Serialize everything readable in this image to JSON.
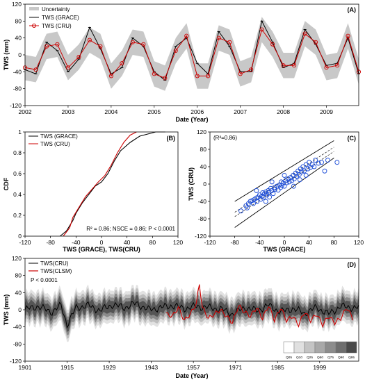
{
  "chart_data": [
    {
      "panel": "(A)",
      "type": "line",
      "xlabel": "Date (Year)",
      "ylabel": "TWS (mm)",
      "xlim": [
        2002.0,
        2009.75
      ],
      "ylim": [
        -120,
        120
      ],
      "xticks": [
        "2002",
        "2003",
        "2004",
        "2005",
        "2006",
        "2007",
        "2008",
        "2009"
      ],
      "yticks": [
        "-120",
        "-80",
        "-40",
        "0",
        "40",
        "80",
        "120"
      ],
      "legend": [
        "Uncertainty",
        "TWS (GRACE)",
        "TWS (CRU)"
      ],
      "legend_position": "top-left",
      "colors": {
        "uncertainty": "#c8c8c8",
        "grace": "#000000",
        "cru": "#cc0000"
      },
      "x": [
        2002.0,
        2002.25,
        2002.5,
        2002.75,
        2003.0,
        2003.25,
        2003.5,
        2003.75,
        2004.0,
        2004.25,
        2004.5,
        2004.75,
        2005.0,
        2005.25,
        2005.5,
        2005.75,
        2006.0,
        2006.25,
        2006.5,
        2006.75,
        2007.0,
        2007.25,
        2007.5,
        2007.75,
        2008.0,
        2008.25,
        2008.5,
        2008.75,
        2009.0,
        2009.25,
        2009.5,
        2009.75
      ],
      "series": [
        {
          "name": "TWS (GRACE)",
          "values": [
            -35,
            -45,
            30,
            10,
            -40,
            -10,
            65,
            15,
            -45,
            -30,
            40,
            20,
            -40,
            -60,
            20,
            40,
            -20,
            -45,
            55,
            20,
            -40,
            -40,
            80,
            30,
            -30,
            -20,
            60,
            25,
            -25,
            -20,
            40,
            -45
          ]
        },
        {
          "name": "TWS (CRU)",
          "values": [
            -30,
            -35,
            20,
            25,
            -30,
            -5,
            35,
            20,
            -50,
            -20,
            30,
            25,
            -45,
            -55,
            10,
            45,
            -50,
            -50,
            40,
            30,
            -45,
            -35,
            60,
            25,
            -25,
            -25,
            50,
            30,
            -30,
            -25,
            45,
            -40
          ]
        }
      ],
      "uncertainty_halfwidth": 30
    },
    {
      "panel": "(B)",
      "type": "line",
      "xlabel": "TWS (GRACE),  TWS(CRU)",
      "ylabel": "CDF",
      "xlim": [
        -120,
        120
      ],
      "ylim": [
        0,
        1
      ],
      "xticks": [
        "-120",
        "-80",
        "-40",
        "0",
        "40",
        "80",
        "120"
      ],
      "yticks": [
        "0",
        "0.2",
        "0.4",
        "0.6",
        "0.8",
        "1"
      ],
      "legend": [
        "TWS (GRACE)",
        "TWS (CRU)"
      ],
      "legend_position": "top-left",
      "annotation": "R² = 0.86; NSCE = 0.86; P < 0.0001",
      "series": [
        {
          "name": "TWS (GRACE)",
          "x": [
            -65,
            -55,
            -45,
            -40,
            -30,
            -20,
            -10,
            0,
            10,
            20,
            30,
            45,
            60,
            85,
            100
          ],
          "y": [
            0,
            0.05,
            0.15,
            0.22,
            0.32,
            0.4,
            0.48,
            0.52,
            0.6,
            0.72,
            0.82,
            0.9,
            0.96,
            1.0,
            1.0
          ]
        },
        {
          "name": "TWS (CRU)",
          "x": [
            -60,
            -50,
            -45,
            -35,
            -25,
            -15,
            -5,
            5,
            15,
            25,
            35,
            45,
            55
          ],
          "y": [
            0,
            0.08,
            0.18,
            0.28,
            0.38,
            0.45,
            0.52,
            0.58,
            0.68,
            0.8,
            0.9,
            0.97,
            1.0
          ]
        }
      ]
    },
    {
      "panel": "(C)",
      "type": "scatter",
      "xlabel": "TWS (GRACE)",
      "ylabel": "TWS (CRU)",
      "xlim": [
        -120,
        120
      ],
      "ylim": [
        -120,
        120
      ],
      "xticks": [
        "-120",
        "-80",
        "-40",
        "0",
        "40",
        "80",
        "120"
      ],
      "yticks": [
        "-120",
        "-80",
        "-40",
        "0",
        "40",
        "80",
        "120"
      ],
      "annotation": "(R²=0.86)",
      "colors": {
        "points": "#1f4fd8"
      },
      "points": [
        [
          -70,
          -62
        ],
        [
          -62,
          -50
        ],
        [
          -58,
          -45
        ],
        [
          -55,
          -40
        ],
        [
          -52,
          -38
        ],
        [
          -50,
          -45
        ],
        [
          -48,
          -35
        ],
        [
          -45,
          -32
        ],
        [
          -44,
          -40
        ],
        [
          -42,
          -30
        ],
        [
          -40,
          -25
        ],
        [
          -38,
          -35
        ],
        [
          -36,
          -28
        ],
        [
          -35,
          -20
        ],
        [
          -33,
          -30
        ],
        [
          -32,
          -22
        ],
        [
          -30,
          -18
        ],
        [
          -28,
          -25
        ],
        [
          -26,
          -15
        ],
        [
          -25,
          -20
        ],
        [
          -24,
          -30
        ],
        [
          -22,
          -10
        ],
        [
          -20,
          -15
        ],
        [
          -18,
          -22
        ],
        [
          -16,
          -8
        ],
        [
          -15,
          -12
        ],
        [
          -12,
          -5
        ],
        [
          -10,
          -14
        ],
        [
          -8,
          -2
        ],
        [
          -6,
          -8
        ],
        [
          -5,
          5
        ],
        [
          -4,
          -3
        ],
        [
          -2,
          2
        ],
        [
          0,
          -5
        ],
        [
          2,
          8
        ],
        [
          4,
          3
        ],
        [
          6,
          12
        ],
        [
          8,
          5
        ],
        [
          10,
          15
        ],
        [
          12,
          8
        ],
        [
          14,
          20
        ],
        [
          16,
          12
        ],
        [
          18,
          25
        ],
        [
          20,
          18
        ],
        [
          22,
          30
        ],
        [
          24,
          22
        ],
        [
          26,
          35
        ],
        [
          28,
          28
        ],
        [
          30,
          40
        ],
        [
          32,
          30
        ],
        [
          35,
          45
        ],
        [
          38,
          35
        ],
        [
          40,
          50
        ],
        [
          42,
          38
        ],
        [
          45,
          45
        ],
        [
          48,
          40
        ],
        [
          50,
          55
        ],
        [
          55,
          48
        ],
        [
          60,
          50
        ],
        [
          65,
          30
        ],
        [
          70,
          55
        ],
        [
          85,
          50
        ],
        [
          -60,
          -55
        ],
        [
          -30,
          -40
        ],
        [
          -20,
          5
        ],
        [
          0,
          20
        ],
        [
          15,
          -5
        ],
        [
          25,
          10
        ],
        [
          35,
          20
        ],
        [
          -45,
          -15
        ]
      ],
      "fit_lines": [
        "1:1",
        "±95% band",
        "±prediction"
      ]
    },
    {
      "panel": "(D)",
      "type": "line",
      "xlabel": "Date (Year)",
      "ylabel": "TWS (mm)",
      "xlim": [
        1901,
        2012
      ],
      "ylim": [
        -120,
        120
      ],
      "xticks": [
        "1901",
        "1915",
        "1929",
        "1943",
        "1957",
        "1971",
        "1985",
        "1999"
      ],
      "yticks": [
        "-120",
        "-80",
        "-40",
        "0",
        "40",
        "80",
        "120"
      ],
      "legend": [
        "TWS(CRU)",
        "TWS(CLSM)"
      ],
      "legend_position": "top-left",
      "annotation": "P < 0.0001",
      "quantile_legend": [
        "Q05",
        "Q10",
        "Q25",
        "Q50",
        "Q75",
        "Q90",
        "Q95"
      ],
      "quantile_colors": [
        "#ffffff",
        "#e0e0e0",
        "#c4c4c4",
        "#a8a8a8",
        "#8c8c8c",
        "#6e6e6e",
        "#4a4a4a"
      ],
      "colors": {
        "cru": "#000000",
        "clsm": "#cc0000"
      },
      "series": [
        {
          "name": "TWS(CRU)",
          "x": [
            1901,
            1905,
            1910,
            1913,
            1915,
            1918,
            1922,
            1926,
            1930,
            1934,
            1938,
            1942,
            1946,
            1950,
            1954,
            1958,
            1962,
            1966,
            1970,
            1974,
            1978,
            1982,
            1986,
            1990,
            1994,
            1998,
            2002,
            2006,
            2010
          ],
          "values": [
            0,
            8,
            -5,
            10,
            -35,
            5,
            10,
            -2,
            12,
            5,
            15,
            0,
            5,
            10,
            3,
            8,
            5,
            2,
            -10,
            5,
            -2,
            10,
            -5,
            3,
            -8,
            5,
            -10,
            8,
            5
          ]
        },
        {
          "name": "TWS(CLSM)",
          "x": [
            1948,
            1950,
            1952,
            1954,
            1956,
            1958,
            1959,
            1960,
            1962,
            1964,
            1966,
            1968,
            1970,
            1972,
            1974,
            1976,
            1978,
            1980,
            1982,
            1984,
            1986,
            1988,
            1990,
            1992,
            1994,
            1996,
            1998,
            2000,
            2002,
            2004,
            2006,
            2008,
            2010
          ],
          "values": [
            -10,
            -15,
            5,
            -25,
            -10,
            15,
            60,
            5,
            -20,
            -10,
            0,
            -15,
            -30,
            10,
            -5,
            -15,
            5,
            -20,
            10,
            -25,
            5,
            -25,
            -15,
            -35,
            -5,
            -25,
            -10,
            -35,
            -15,
            -30,
            -20,
            5,
            -20
          ]
        }
      ]
    }
  ]
}
